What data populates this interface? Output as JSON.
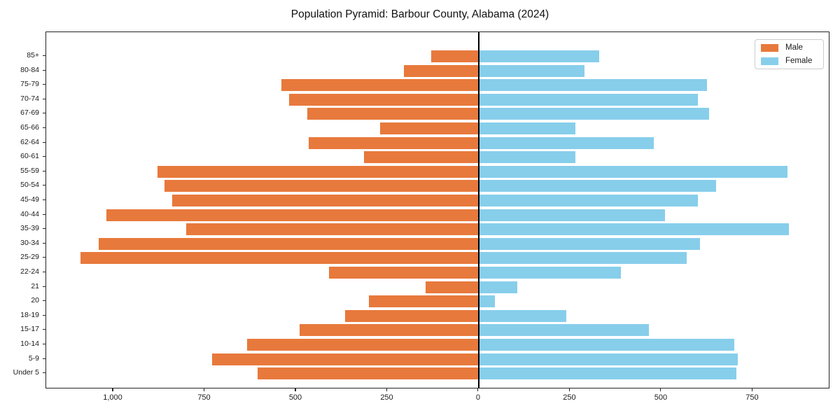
{
  "header": {
    "title": "Population Pyramid: Barbour County, Alabama (2024)"
  },
  "colors": {
    "male": "#E8793C",
    "female": "#87CEEB",
    "axis": "#262626",
    "zero_line": "#000000"
  },
  "chart_data": {
    "type": "bar",
    "variant": "population-pyramid",
    "title": "Population Pyramid: Barbour County, Alabama (2024)",
    "categories": [
      "85+",
      "80-84",
      "75-79",
      "70-74",
      "67-69",
      "65-66",
      "62-64",
      "60-61",
      "55-59",
      "50-54",
      "45-49",
      "40-44",
      "35-39",
      "30-34",
      "25-29",
      "22-24",
      "21",
      "20",
      "18-19",
      "15-17",
      "10-14",
      "5-9",
      "Under 5"
    ],
    "series": [
      {
        "name": "Male",
        "side": "left",
        "color": "#E8793C",
        "values": [
          130,
          205,
          540,
          520,
          470,
          270,
          465,
          315,
          880,
          860,
          840,
          1020,
          800,
          1040,
          1090,
          410,
          145,
          300,
          365,
          490,
          635,
          730,
          605
        ]
      },
      {
        "name": "Female",
        "side": "right",
        "color": "#87CEEB",
        "values": [
          330,
          290,
          625,
          600,
          630,
          265,
          480,
          265,
          845,
          650,
          600,
          510,
          850,
          605,
          570,
          390,
          105,
          45,
          240,
          465,
          700,
          710,
          705
        ]
      }
    ],
    "x_tick_values": [
      -1000,
      -750,
      -500,
      -250,
      0,
      250,
      500,
      750
    ],
    "x_tick_labels": [
      "1,000",
      "750",
      "500",
      "250",
      "0",
      "250",
      "500",
      "750"
    ],
    "xlim": [
      -1184,
      962
    ],
    "grid": false,
    "legend_position": "upper right"
  }
}
